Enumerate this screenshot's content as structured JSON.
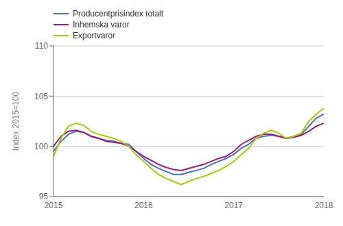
{
  "chart_data": {
    "type": "line",
    "title": "",
    "ylabel": "Index 2015=100",
    "categories": [
      "2015",
      null,
      null,
      null,
      null,
      null,
      null,
      null,
      null,
      null,
      null,
      null,
      "2016",
      null,
      null,
      null,
      null,
      null,
      null,
      null,
      null,
      null,
      null,
      null,
      "2017",
      null,
      null,
      null,
      null,
      null,
      null,
      null,
      null,
      null,
      null,
      null,
      "2018"
    ],
    "series": [
      {
        "name": "Producentprisindex totalt",
        "color": "#4472C4",
        "values": [
          99.5,
          100.5,
          101.2,
          101.5,
          101.4,
          101.0,
          100.8,
          100.6,
          100.5,
          100.3,
          100.2,
          99.5,
          98.8,
          98.2,
          97.8,
          97.5,
          97.2,
          97.2,
          97.4,
          97.6,
          97.8,
          98.2,
          98.5,
          98.8,
          99.2,
          99.8,
          100.2,
          100.8,
          101.0,
          101.1,
          101.0,
          100.8,
          101.0,
          101.2,
          102.0,
          102.8,
          103.2
        ]
      },
      {
        "name": "Inhemska varor",
        "color": "#9B1B7A",
        "values": [
          100.0,
          101.0,
          101.5,
          101.6,
          101.4,
          101.0,
          100.8,
          100.5,
          100.4,
          100.3,
          100.0,
          99.5,
          99.0,
          98.6,
          98.2,
          97.9,
          97.7,
          97.6,
          97.8,
          98.0,
          98.2,
          98.5,
          98.8,
          99.0,
          99.5,
          100.2,
          100.6,
          101.0,
          101.2,
          101.2,
          101.0,
          100.8,
          100.9,
          101.1,
          101.5,
          102.0,
          102.3
        ]
      },
      {
        "name": "Exportvaror",
        "color": "#AACC00",
        "values": [
          99.0,
          100.8,
          102.0,
          102.3,
          102.1,
          101.5,
          101.2,
          101.0,
          100.8,
          100.5,
          100.0,
          99.2,
          98.5,
          97.8,
          97.2,
          96.8,
          96.5,
          96.2,
          96.5,
          96.8,
          97.0,
          97.3,
          97.6,
          98.0,
          98.5,
          99.2,
          99.8,
          100.8,
          101.3,
          101.6,
          101.3,
          100.8,
          101.0,
          101.3,
          102.5,
          103.2,
          103.8
        ]
      }
    ],
    "ylim": [
      95,
      110
    ],
    "yticks": [
      95,
      100,
      105,
      110
    ],
    "grid": true,
    "legend": "upper left"
  }
}
